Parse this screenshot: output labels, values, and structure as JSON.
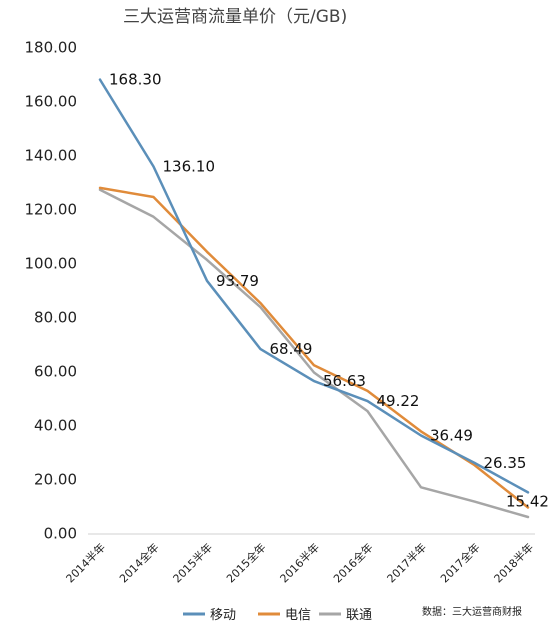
{
  "chart_data": {
    "type": "line",
    "title": "三大运营商流量单价（元/GB)",
    "categories": [
      "2014半年",
      "2014全年",
      "2015半年",
      "2015全年",
      "2016半年",
      "2016全年",
      "2017半年",
      "2017全年",
      "2018半年"
    ],
    "ylim": [
      0,
      180
    ],
    "yticks": [
      "0.00",
      "20.00",
      "40.00",
      "60.00",
      "80.00",
      "100.00",
      "120.00",
      "140.00",
      "160.00",
      "180.00"
    ],
    "grid": false,
    "legend": "bottom",
    "series": [
      {
        "name": "移动",
        "color": "#5b8fb9",
        "values": [
          168.3,
          136.1,
          93.79,
          68.49,
          56.63,
          49.22,
          36.49,
          26.35,
          15.42
        ],
        "labels": [
          "168.30",
          "136.10",
          "93.79",
          "68.49",
          "56.63",
          "49.22",
          "36.49",
          "26.35",
          "15.42"
        ]
      },
      {
        "name": "电信",
        "color": "#e08b3a",
        "values": [
          128.2,
          124.8,
          104.5,
          85.5,
          62.5,
          53.0,
          38.0,
          25.5,
          9.8
        ]
      },
      {
        "name": "联通",
        "color": "#a6a6a6",
        "values": [
          127.5,
          117.5,
          101.5,
          84.0,
          59.8,
          45.5,
          17.3,
          12.0,
          6.3
        ]
      }
    ],
    "source": "数据：三大运营商财报"
  }
}
